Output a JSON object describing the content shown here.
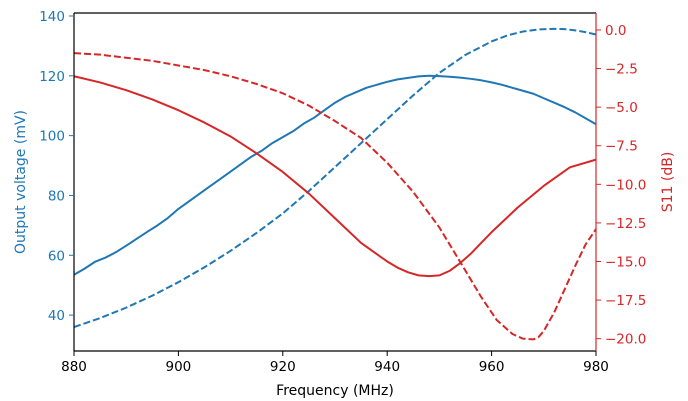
{
  "chart_data": {
    "type": "line",
    "xlabel": "Frequency (MHz)",
    "ylabel_left": "Output voltage (mV)",
    "ylabel_right": "S11 (dB)",
    "xlim": [
      880,
      980
    ],
    "ylim_left": [
      28,
      141
    ],
    "ylim_right": [
      -20.8,
      1.1
    ],
    "x_ticks": [
      880,
      900,
      920,
      940,
      960,
      980
    ],
    "x_tick_labels": [
      "880",
      "900",
      "920",
      "940",
      "960",
      "980"
    ],
    "y_left_ticks": [
      40,
      60,
      80,
      100,
      120,
      140
    ],
    "y_left_tick_labels": [
      "40",
      "60",
      "80",
      "100",
      "120",
      "140"
    ],
    "y_right_ticks": [
      0,
      -2.5,
      -5,
      -7.5,
      -10,
      -12.5,
      -15,
      -17.5,
      -20
    ],
    "y_right_tick_labels": [
      "0.0",
      "−2.5",
      "−5.0",
      "−7.5",
      "−10.0",
      "−12.5",
      "−15.0",
      "−17.5",
      "−20.0"
    ],
    "grid": false,
    "colors": {
      "voltage": "#1f77b4",
      "s11": "#d62728",
      "axis": "#000000"
    },
    "series": [
      {
        "axis": "left",
        "color": "#1f77b4",
        "style": "solid",
        "x": [
          880,
          882,
          884,
          886,
          888,
          890,
          892,
          894,
          896,
          898,
          900,
          902,
          904,
          906,
          908,
          910,
          912,
          914,
          916,
          918,
          920,
          922,
          924,
          926,
          928,
          930,
          932,
          934,
          936,
          938,
          940,
          942,
          944,
          946,
          948,
          950,
          952,
          954,
          956,
          958,
          960,
          962,
          964,
          966,
          968,
          970,
          972,
          974,
          976,
          978,
          980
        ],
        "y": [
          53.5,
          55.5,
          57.8,
          59.2,
          61.0,
          63.2,
          65.5,
          67.8,
          70.0,
          72.5,
          75.5,
          78.0,
          80.5,
          83.0,
          85.5,
          88.0,
          90.5,
          93.0,
          95.0,
          97.5,
          99.5,
          101.5,
          104.0,
          106.0,
          108.5,
          111.0,
          113.0,
          114.5,
          116.0,
          117.0,
          118.0,
          118.8,
          119.3,
          119.8,
          120.0,
          119.9,
          119.7,
          119.4,
          119.0,
          118.5,
          117.8,
          117.0,
          116.0,
          115.0,
          114.0,
          112.5,
          111.0,
          109.5,
          107.8,
          105.8,
          103.8
        ]
      },
      {
        "axis": "left",
        "color": "#1f77b4",
        "style": "dashed",
        "x": [
          880,
          885,
          890,
          895,
          900,
          905,
          910,
          915,
          920,
          925,
          930,
          935,
          940,
          945,
          950,
          955,
          960,
          963,
          966,
          969,
          972,
          974,
          976,
          978,
          980
        ],
        "y": [
          36.0,
          39.0,
          42.5,
          46.5,
          51.0,
          56.0,
          61.5,
          67.5,
          74.0,
          81.5,
          89.5,
          97.5,
          105.5,
          113.5,
          121.0,
          127.0,
          131.5,
          133.5,
          134.8,
          135.5,
          135.7,
          135.6,
          135.2,
          134.6,
          133.8
        ]
      },
      {
        "axis": "right",
        "color": "#d62728",
        "style": "solid",
        "x": [
          880,
          885,
          890,
          895,
          900,
          905,
          910,
          915,
          920,
          925,
          930,
          935,
          940,
          942,
          944,
          946,
          948,
          950,
          952,
          954,
          956,
          958,
          960,
          965,
          970,
          975,
          980
        ],
        "y": [
          -3.0,
          -3.4,
          -3.9,
          -4.5,
          -5.2,
          -6.0,
          -6.9,
          -8.0,
          -9.2,
          -10.6,
          -12.2,
          -13.8,
          -15.0,
          -15.4,
          -15.7,
          -15.9,
          -15.95,
          -15.9,
          -15.6,
          -15.1,
          -14.5,
          -13.8,
          -13.1,
          -11.5,
          -10.1,
          -8.9,
          -8.4
        ]
      },
      {
        "axis": "right",
        "color": "#d62728",
        "style": "dashed",
        "x": [
          880,
          885,
          890,
          895,
          900,
          905,
          910,
          915,
          920,
          925,
          930,
          935,
          940,
          945,
          950,
          955,
          958,
          961,
          964,
          966,
          968,
          969,
          970,
          972,
          974,
          976,
          978,
          980
        ],
        "y": [
          -1.5,
          -1.6,
          -1.8,
          -2.0,
          -2.3,
          -2.6,
          -3.0,
          -3.5,
          -4.1,
          -4.9,
          -5.9,
          -7.0,
          -8.6,
          -10.5,
          -12.8,
          -15.6,
          -17.3,
          -18.8,
          -19.7,
          -20.0,
          -20.05,
          -19.9,
          -19.5,
          -18.3,
          -16.8,
          -15.3,
          -13.9,
          -12.9
        ]
      }
    ]
  }
}
